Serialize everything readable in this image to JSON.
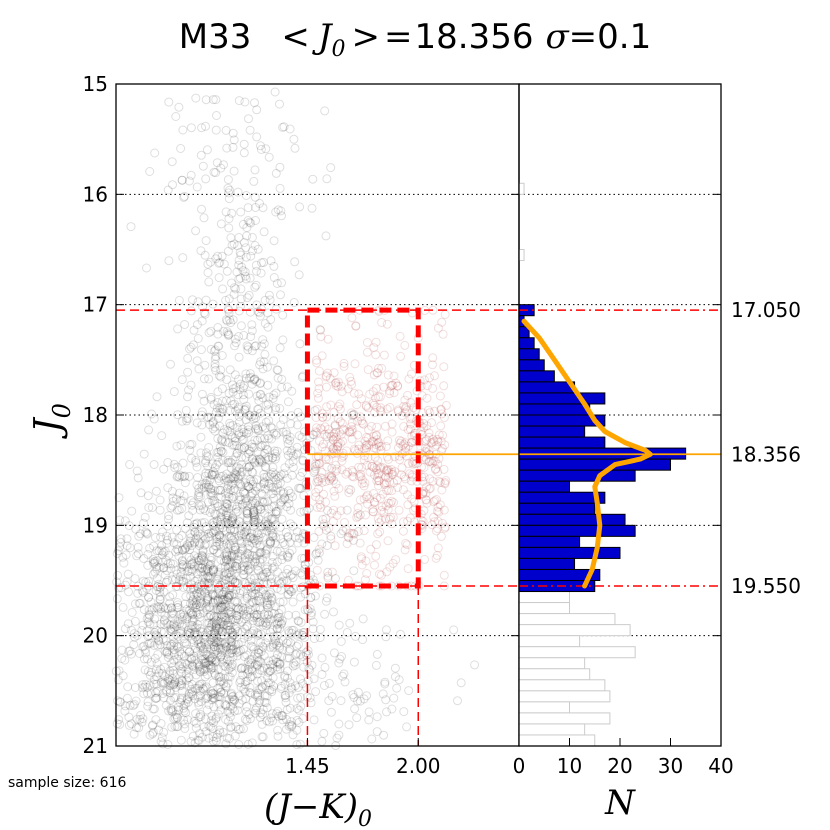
{
  "title": {
    "galaxy": "M33",
    "mean_label": "< J0 > =",
    "mean_symbol": "J",
    "mean_sub": "0",
    "mean_value": "18.356",
    "sigma_symbol": "σ",
    "sigma_eq": "=",
    "sigma_value": "0.1"
  },
  "sample_size_label": "sample size: 616",
  "chart_data": [
    {
      "type": "scatter",
      "name": "color-magnitude diagram",
      "ylabel": "J0",
      "ylabel_main": "J",
      "ylabel_sub": "0",
      "xlabel": "(J - K)0",
      "xlabel_main": "(J−K)",
      "xlabel_sub": "0",
      "x_ticks": [
        "1.45",
        "2.00"
      ],
      "y_ticks": [
        "15",
        "16",
        "17",
        "18",
        "19",
        "20",
        "21"
      ],
      "ylim": [
        21,
        15
      ],
      "xlim": [
        0.5,
        2.5
      ],
      "grid_y": [
        16,
        17,
        18,
        19,
        20
      ],
      "selection_box": {
        "x_min": 1.45,
        "x_max": 2.0,
        "y_min": 17.05,
        "y_max": 19.55
      },
      "mean_line_y": 18.356,
      "point_color": "#000000",
      "selected_point_color": "#b03030",
      "sample_size": 616
    },
    {
      "type": "bar",
      "orientation": "horizontal",
      "name": "luminosity histogram",
      "xlabel": "N",
      "x_ticks": [
        "0",
        "10",
        "20",
        "30",
        "40"
      ],
      "xlim": [
        0,
        40
      ],
      "ylim": [
        21,
        15
      ],
      "bin_width": 0.1,
      "selected": {
        "color": "#0000cc",
        "bins_start": [
          17.0,
          17.1,
          17.2,
          17.3,
          17.4,
          17.5,
          17.6,
          17.7,
          17.8,
          17.9,
          18.0,
          18.1,
          18.2,
          18.3,
          18.4,
          18.5,
          18.6,
          18.7,
          18.8,
          18.9,
          19.0,
          19.1,
          19.2,
          19.3,
          19.4,
          19.5
        ],
        "counts": [
          3,
          1,
          2,
          3,
          4,
          5,
          7,
          11,
          17,
          14,
          17,
          13,
          17,
          33,
          30,
          23,
          10,
          17,
          15,
          21,
          23,
          12,
          20,
          11,
          16,
          15
        ]
      },
      "background": {
        "color": "#cccccc",
        "bins_start": [
          15.9,
          16.5,
          19.6,
          19.7,
          19.8,
          19.9,
          20.0,
          20.1,
          20.2,
          20.3,
          20.4,
          20.5,
          20.6,
          20.7,
          20.8,
          20.9
        ],
        "counts": [
          1,
          1,
          10,
          10,
          19,
          22,
          12,
          23,
          13,
          14,
          17,
          18,
          10,
          18,
          13,
          15
        ]
      },
      "fit_curve": {
        "color": "#ffa500",
        "J": [
          17.15,
          17.3,
          17.5,
          17.7,
          17.9,
          18.05,
          18.15,
          18.25,
          18.32,
          18.356,
          18.4,
          18.45,
          18.55,
          18.65,
          18.8,
          19.0,
          19.2,
          19.4,
          19.55
        ],
        "N": [
          1,
          4,
          7,
          10,
          13,
          15,
          17,
          21,
          25,
          26,
          24,
          19,
          16,
          15,
          15.5,
          16,
          15.5,
          14.5,
          13
        ]
      },
      "mean_line": {
        "value": 18.356,
        "label": "18.356",
        "color": "#ffa500"
      },
      "cut_lines": [
        {
          "value": 17.05,
          "label": "17.050",
          "color": "#ff0000"
        },
        {
          "value": 19.55,
          "label": "19.550",
          "color": "#ff0000"
        }
      ]
    }
  ]
}
